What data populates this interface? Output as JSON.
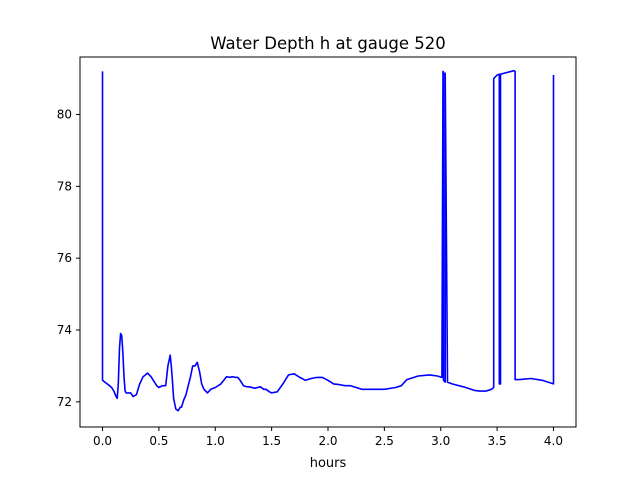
{
  "chart_data": {
    "type": "line",
    "title": "Water Depth h at gauge 520",
    "xlabel": "hours",
    "ylabel": "",
    "xlim": [
      -0.2,
      4.2
    ],
    "ylim": [
      71.3,
      81.6
    ],
    "xticks": [
      0.0,
      0.5,
      1.0,
      1.5,
      2.0,
      2.5,
      3.0,
      3.5,
      4.0
    ],
    "xtick_labels": [
      "0.0",
      "0.5",
      "1.0",
      "1.5",
      "2.0",
      "2.5",
      "3.0",
      "3.5",
      "4.0"
    ],
    "yticks": [
      72,
      74,
      76,
      78,
      80
    ],
    "ytick_labels": [
      "72",
      "74",
      "76",
      "78",
      "80"
    ],
    "grid": false,
    "line_color": "#0000ff",
    "series": [
      {
        "x": [
          0.0,
          0.0,
          0.02,
          0.05,
          0.08,
          0.1,
          0.12,
          0.13,
          0.14,
          0.15,
          0.16,
          0.17,
          0.18,
          0.19,
          0.2,
          0.21,
          0.22,
          0.25,
          0.27,
          0.3,
          0.33,
          0.36,
          0.4,
          0.43,
          0.45,
          0.48,
          0.5,
          0.53,
          0.56,
          0.58,
          0.6,
          0.61,
          0.62,
          0.63,
          0.65,
          0.67,
          0.69,
          0.7,
          0.72,
          0.74,
          0.76,
          0.78,
          0.8,
          0.82,
          0.84,
          0.86,
          0.88,
          0.9,
          0.93,
          0.96,
          1.0,
          1.05,
          1.1,
          1.13,
          1.15,
          1.18,
          1.2,
          1.22,
          1.25,
          1.28,
          1.3,
          1.35,
          1.4,
          1.43,
          1.45,
          1.48,
          1.5,
          1.55,
          1.6,
          1.65,
          1.7,
          1.75,
          1.8,
          1.85,
          1.9,
          1.95,
          2.0,
          2.05,
          2.1,
          2.15,
          2.2,
          2.3,
          2.4,
          2.5,
          2.6,
          2.65,
          2.7,
          2.8,
          2.9,
          2.97,
          3.01,
          3.02,
          3.025,
          3.025,
          3.04,
          3.04,
          3.06,
          3.1,
          3.2,
          3.3,
          3.35,
          3.4,
          3.45,
          3.47,
          3.47,
          3.5,
          3.52,
          3.52,
          3.53,
          3.53,
          3.6,
          3.65,
          3.66,
          3.66,
          3.7,
          3.8,
          3.9,
          4.0,
          4.0
        ],
        "y": [
          81.2,
          72.6,
          72.55,
          72.48,
          72.4,
          72.3,
          72.15,
          72.1,
          72.5,
          73.5,
          73.9,
          73.85,
          73.4,
          72.7,
          72.3,
          72.25,
          72.25,
          72.25,
          72.15,
          72.2,
          72.5,
          72.7,
          72.8,
          72.7,
          72.6,
          72.45,
          72.4,
          72.45,
          72.45,
          73.0,
          73.3,
          73.0,
          72.6,
          72.1,
          71.8,
          71.75,
          71.85,
          71.85,
          72.05,
          72.2,
          72.45,
          72.7,
          73.0,
          73.0,
          73.1,
          72.85,
          72.5,
          72.35,
          72.25,
          72.35,
          72.4,
          72.5,
          72.7,
          72.68,
          72.7,
          72.68,
          72.68,
          72.6,
          72.45,
          72.42,
          72.42,
          72.38,
          72.42,
          72.35,
          72.35,
          72.28,
          72.25,
          72.28,
          72.5,
          72.75,
          72.78,
          72.68,
          72.6,
          72.65,
          72.68,
          72.68,
          72.6,
          72.5,
          72.48,
          72.45,
          72.45,
          72.35,
          72.35,
          72.35,
          72.4,
          72.45,
          72.62,
          72.72,
          72.75,
          72.72,
          72.68,
          81.2,
          81.18,
          72.6,
          72.55,
          81.15,
          72.55,
          72.5,
          72.42,
          72.32,
          72.3,
          72.3,
          72.35,
          72.4,
          81.0,
          81.1,
          81.12,
          72.5,
          72.5,
          81.12,
          81.18,
          81.22,
          81.2,
          72.62,
          72.62,
          72.65,
          72.6,
          72.5,
          81.1
        ]
      }
    ]
  }
}
